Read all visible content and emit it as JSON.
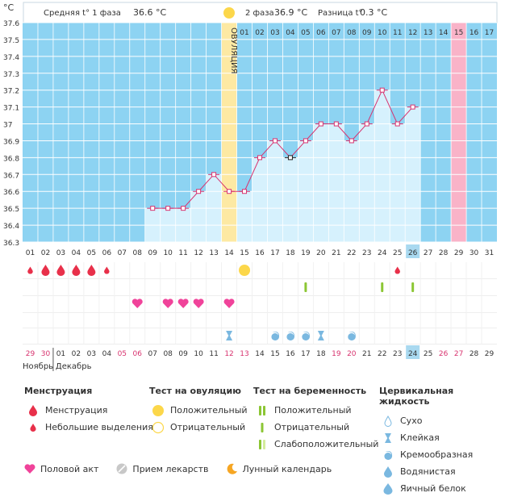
{
  "header": {
    "unit_label": "°C",
    "phase1_label": "Средняя t° 1 фаза",
    "phase1_value": "36.6 °C",
    "phase2_label": "2 фаза",
    "phase2_value": "36.9 °C",
    "diff_label": "Разница t°",
    "diff_value": "0.3 °C"
  },
  "ovulation_label": "ОВУЛЯЦИЯ",
  "colors": {
    "plot_bg": "#8dd3f2",
    "grid": "#ffffff",
    "column_fill": "#d6f1fd",
    "line": "#d8336f",
    "ovulation_band": "#fde9a3",
    "day15_band": "#f9b3c8",
    "today_box": "#a9d9f0",
    "axis_text": "#333333",
    "weekend_text": "#d8336f",
    "blood": "#e8304a",
    "heart": "#f0439a",
    "sun": "#fcd74a",
    "green": "#8cc634",
    "water": "#7ab8e0"
  },
  "chart_data": {
    "type": "line",
    "ylabel": "°C",
    "ylim": [
      36.3,
      37.6
    ],
    "yticks": [
      "36.3",
      "36.4",
      "36.5",
      "36.6",
      "36.7",
      "36.8",
      "36.9",
      "37",
      "37.1",
      "37.2",
      "37.3",
      "37.4",
      "37.5",
      "37.6"
    ],
    "days": [
      "01",
      "02",
      "03",
      "04",
      "05",
      "06",
      "07",
      "08",
      "09",
      "10",
      "11",
      "12",
      "13",
      "14",
      "15",
      "16",
      "17",
      "18",
      "19",
      "20",
      "21",
      "22",
      "23",
      "24",
      "25",
      "26",
      "27",
      "28",
      "29",
      "30",
      "31"
    ],
    "temperatures": [
      null,
      null,
      null,
      null,
      null,
      null,
      null,
      null,
      36.5,
      36.5,
      36.5,
      36.6,
      36.7,
      36.6,
      36.6,
      36.8,
      36.9,
      36.8,
      36.9,
      37.0,
      37.0,
      36.9,
      37.0,
      37.2,
      37.0,
      37.1,
      null,
      null,
      null,
      null,
      null
    ],
    "phase2_day_labels": [
      "01",
      "02",
      "03",
      "04",
      "05",
      "06",
      "07",
      "08",
      "09",
      "10",
      "11",
      "12",
      "13",
      "14",
      "15",
      "16",
      "17"
    ],
    "phase2_start_day": 15,
    "ovulation_day": 14,
    "highlight_day": 29,
    "today_day": 26,
    "selected_point_day": 18,
    "dates": [
      "29",
      "30",
      "01",
      "02",
      "03",
      "04",
      "05",
      "06",
      "07",
      "08",
      "09",
      "10",
      "11",
      "12",
      "13",
      "14",
      "15",
      "16",
      "17",
      "18",
      "19",
      "20",
      "21",
      "22",
      "23",
      "24",
      "25",
      "26",
      "27",
      "28",
      "29"
    ],
    "weekend_date_days": [
      1,
      2,
      7,
      8,
      14,
      15,
      21,
      22,
      28,
      29
    ],
    "today_date_index": 26,
    "month_labels": [
      "Ноябрь",
      "Декабрь"
    ],
    "menstruation_days": [
      1,
      2,
      3,
      4,
      5,
      6,
      25
    ],
    "menstruation_small_days": [
      1,
      6,
      25
    ],
    "ovulation_test_positive_day": 15,
    "pregnancy_test_positive_days": [],
    "pregnancy_test_negative_days": [
      19,
      24,
      26
    ],
    "intercourse_days": [
      8,
      10,
      11,
      12,
      14
    ],
    "cervical": [
      {
        "day": 14,
        "kind": "sticky"
      },
      {
        "day": 17,
        "kind": "creamy"
      },
      {
        "day": 18,
        "kind": "creamy"
      },
      {
        "day": 19,
        "kind": "creamy"
      },
      {
        "day": 20,
        "kind": "sticky"
      },
      {
        "day": 22,
        "kind": "creamy"
      }
    ]
  },
  "legend": {
    "menstruation": {
      "title": "Менструация",
      "items": [
        "Менструация",
        "Небольшие выделения"
      ]
    },
    "ovulation_test": {
      "title": "Тест на овуляцию",
      "items": [
        "Положительный",
        "Отрицательный"
      ]
    },
    "pregnancy_test": {
      "title": "Тест на беременность",
      "items": [
        "Положительный",
        "Отрицательный",
        "Слабоположительный"
      ]
    },
    "cervical": {
      "title": "Цервикальная жидкость",
      "items": [
        "Сухо",
        "Клейкая",
        "Кремообразная",
        "Водянистая",
        "Яичный белок"
      ]
    },
    "bottom": [
      "Половой акт",
      "Прием лекарств",
      "Лунный календарь"
    ]
  }
}
